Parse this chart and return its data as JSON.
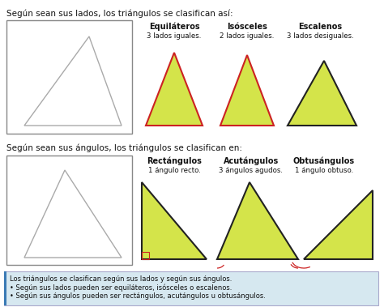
{
  "bg_color": "#ffffff",
  "title1": "Según sean sus lados, los triángulos se clasifican así:",
  "title2": "Según sean sus ángulos, los triángulos se clasifican en:",
  "section1_labels": [
    "Equiláteros",
    "Isósceles",
    "Escalenos"
  ],
  "section1_sublabels": [
    "3 lados iguales.",
    "2 lados iguales.",
    "3 lados desiguales."
  ],
  "section2_labels": [
    "Rectángulos",
    "Acutángulos",
    "Obtusángulos"
  ],
  "section2_sublabels": [
    "1 ángulo recto.",
    "3 ángulos agudos.",
    "1 ángulo obtuso."
  ],
  "tri_fill": "#d4e44a",
  "tri_fill_dark": "#c8d830",
  "border_red": "#cc2222",
  "border_dark": "#222222",
  "footer_bg": "#d6e8f0",
  "footer_line_color": "#3a7ab5",
  "footer_text1": "Los triángulos se clasifican según sus lados y según sus ángulos.",
  "footer_text2": "Según sus lados pueden ser equiláteros, isósceles o escalenos.",
  "footer_text3": "Según sus ángulos pueden ser rectángulos, acutángulos u obtusángulos.",
  "angle_arc_color": "#cc2222"
}
